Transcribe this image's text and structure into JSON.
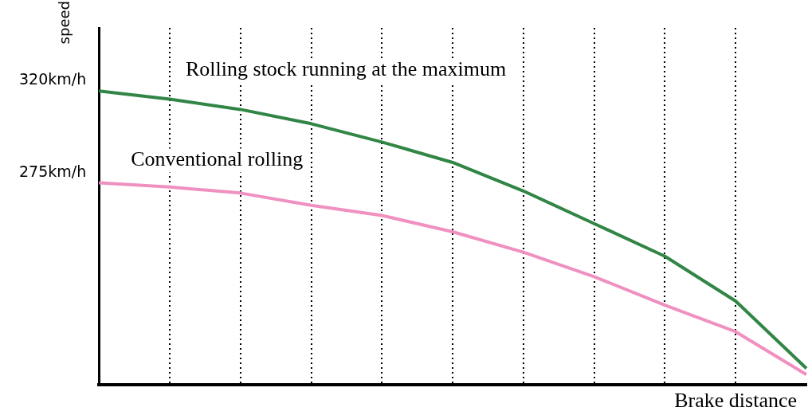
{
  "chart_data": {
    "type": "line",
    "ylabel": "speed",
    "xlabel": "Brake distance",
    "categories": [
      null,
      null,
      null,
      null,
      null,
      null,
      null,
      null,
      null,
      null,
      null
    ],
    "ylim": [
      171,
      346
    ],
    "yticks": [
      {
        "value": 275,
        "label": "275km/h"
      },
      {
        "value": 320,
        "label": "320km/h"
      }
    ],
    "tick_labels": "y",
    "grid": "x",
    "marker": "none",
    "line_style": "solid",
    "legend": false,
    "series": [
      {
        "name": "Rolling stock running at the maximum",
        "color": "#318545",
        "values": [
          315,
          311,
          306,
          299,
          290,
          280,
          266,
          250,
          234,
          212,
          179
        ]
      },
      {
        "name": "Conventional rolling",
        "color": "#f090c0",
        "values": [
          270,
          268,
          265,
          259,
          254,
          246,
          236,
          224,
          210,
          197,
          176
        ]
      }
    ]
  }
}
